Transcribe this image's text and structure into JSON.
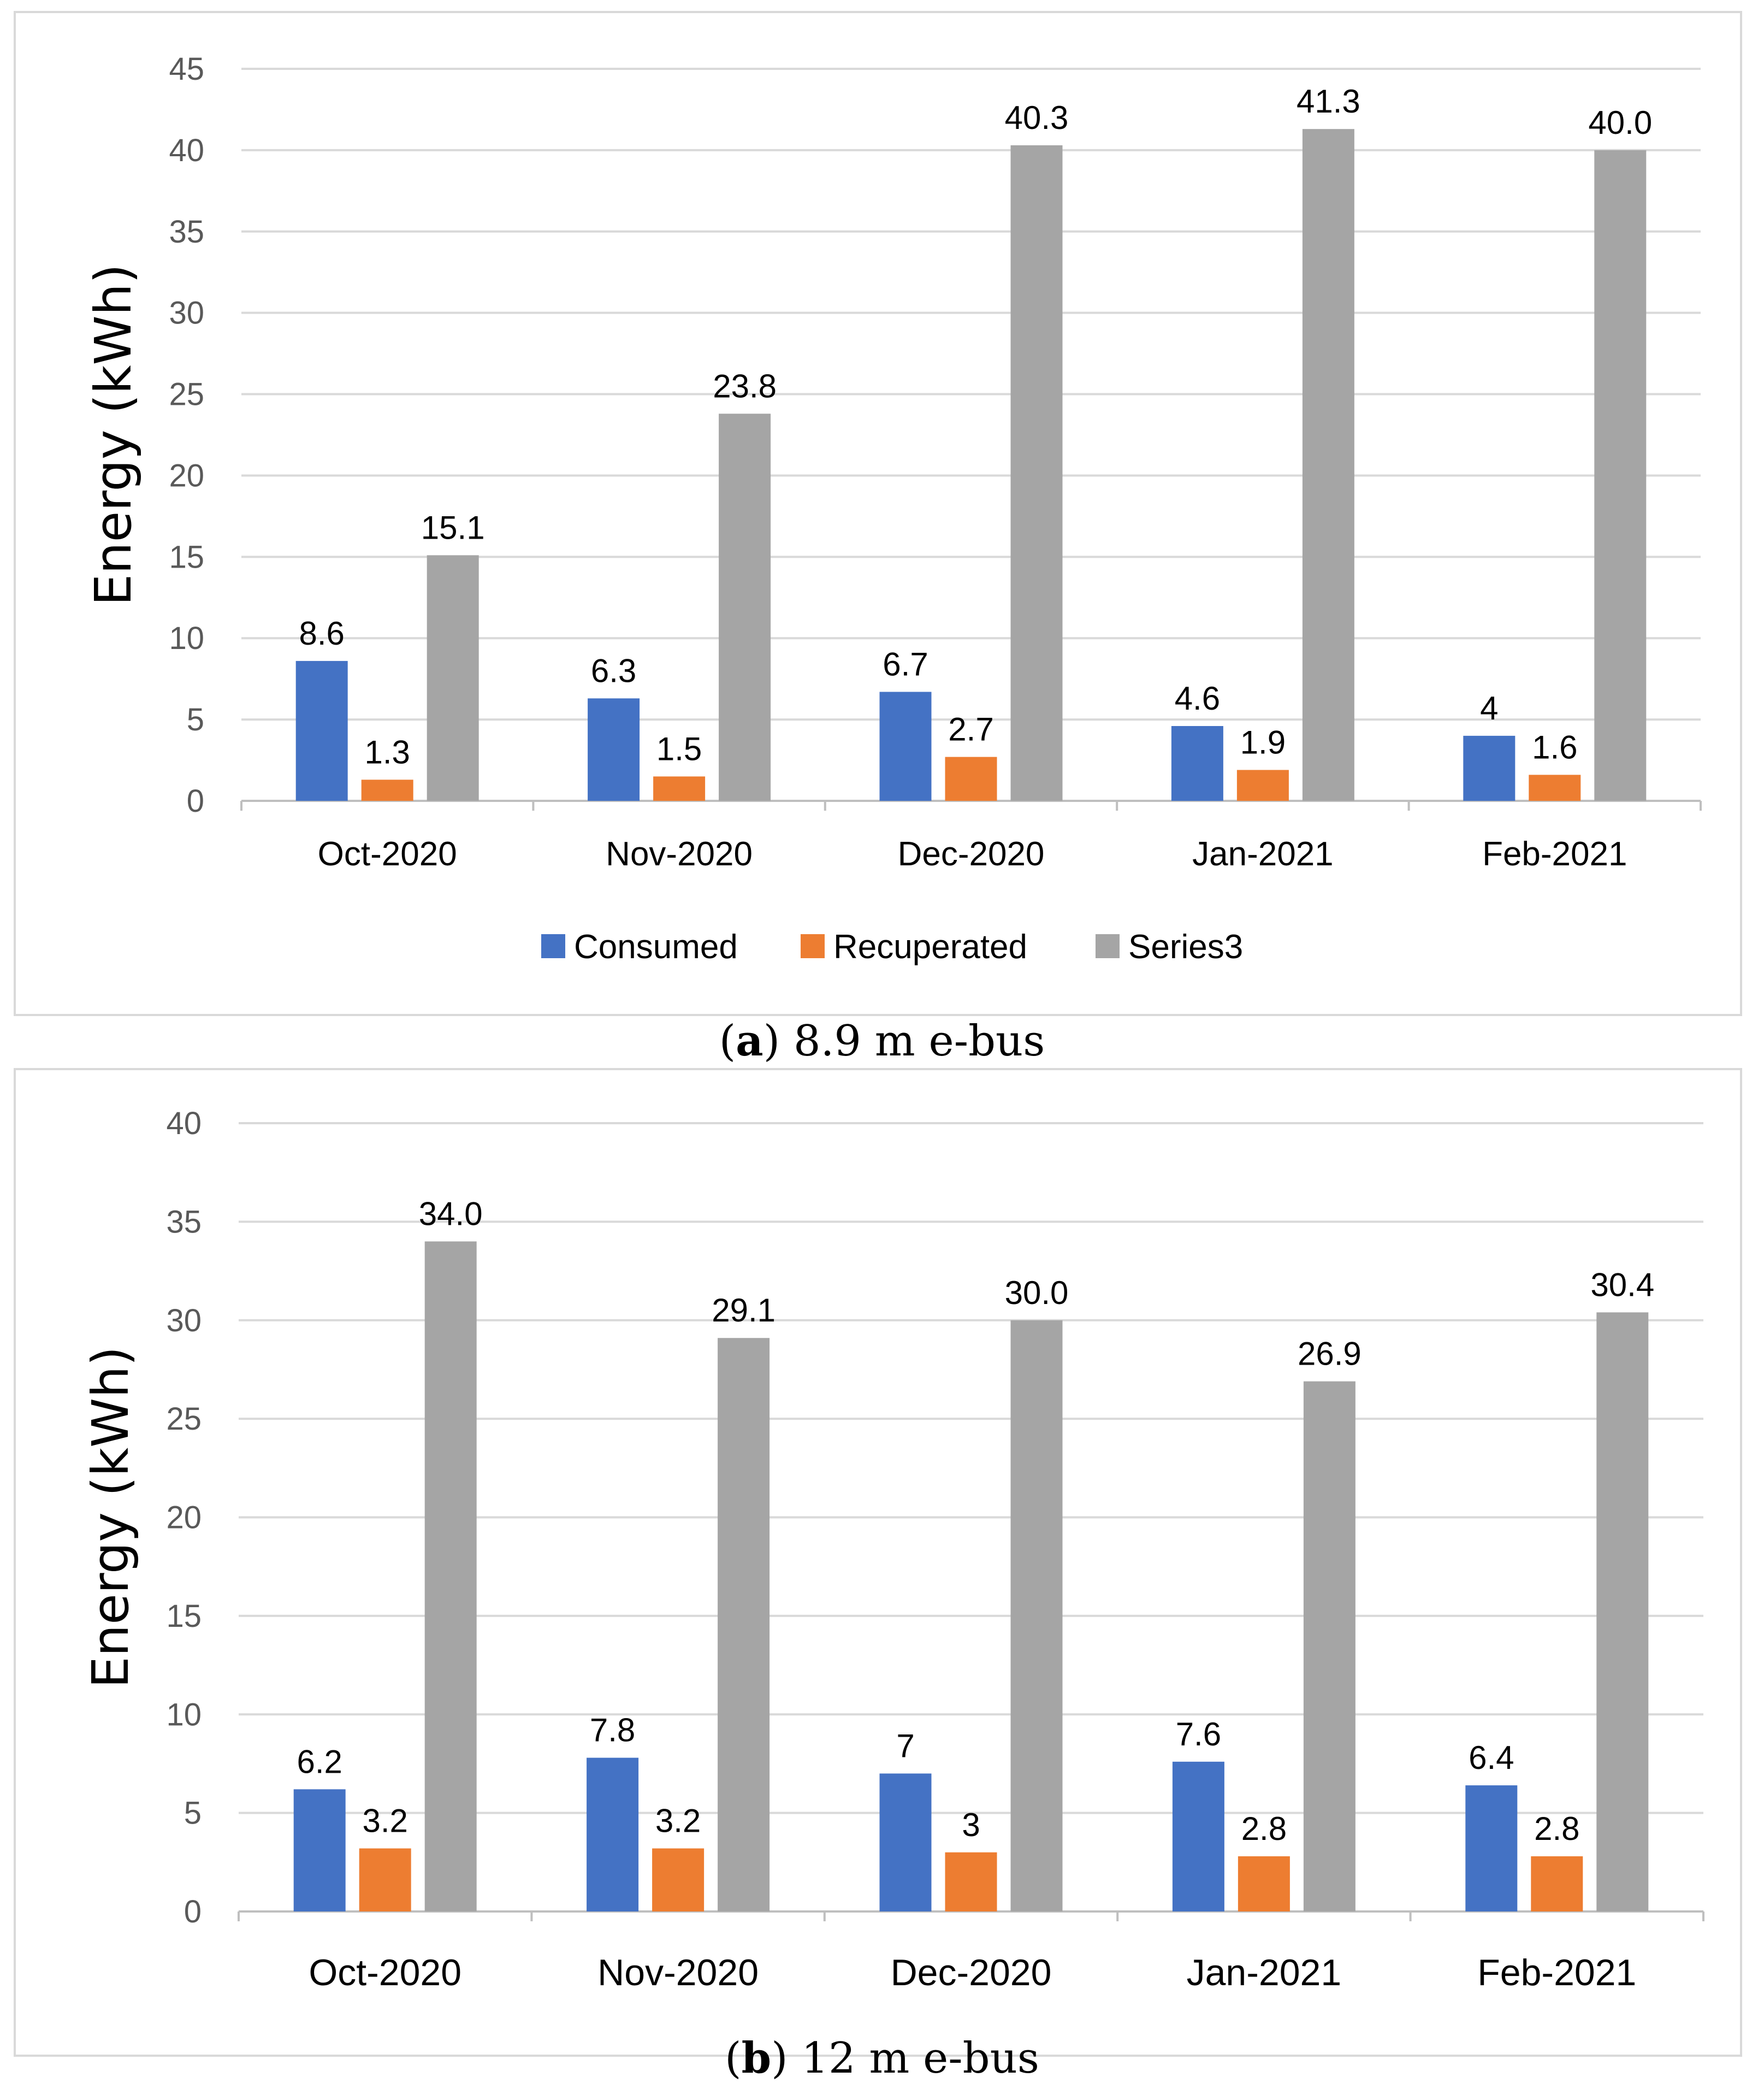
{
  "chart_data": [
    {
      "type": "bar",
      "categories": [
        "Oct-2020",
        "Nov-2020",
        "Dec-2020",
        "Jan-2021",
        "Feb-2021"
      ],
      "series": [
        {
          "name": "Consumed",
          "values": [
            8.6,
            6.3,
            6.7,
            4.6,
            4
          ],
          "labels": [
            "8.6",
            "6.3",
            "6.7",
            "4.6",
            "4"
          ]
        },
        {
          "name": "Recuperated",
          "values": [
            1.3,
            1.5,
            2.7,
            1.9,
            1.6
          ],
          "labels": [
            "1.3",
            "1.5",
            "2.7",
            "1.9",
            "1.6"
          ]
        },
        {
          "name": "Series3",
          "values": [
            15.1,
            23.8,
            40.3,
            41.3,
            40.0
          ],
          "labels": [
            "15.1",
            "23.8",
            "40.3",
            "41.3",
            "40.0"
          ]
        }
      ],
      "xlabel": "",
      "ylabel": "Energy (kWh)",
      "ylim": [
        0,
        45
      ],
      "yticks": [
        0,
        5,
        10,
        15,
        20,
        25,
        30,
        35,
        40,
        45
      ],
      "grid": true,
      "legend": "bottom",
      "caption_bold": "a",
      "caption_rest": " 8.9 m e-bus"
    },
    {
      "type": "bar",
      "categories": [
        "Oct-2020",
        "Nov-2020",
        "Dec-2020",
        "Jan-2021",
        "Feb-2021"
      ],
      "series": [
        {
          "name": "Consumed",
          "values": [
            6.2,
            7.8,
            7,
            7.6,
            6.4
          ],
          "labels": [
            "6.2",
            "7.8",
            "7",
            "7.6",
            "6.4"
          ]
        },
        {
          "name": "Recuperated",
          "values": [
            3.2,
            3.2,
            3,
            2.8,
            2.8
          ],
          "labels": [
            "3.2",
            "3.2",
            "3",
            "2.8",
            "2.8"
          ]
        },
        {
          "name": "Series3",
          "values": [
            34.0,
            29.1,
            30.0,
            26.9,
            30.4
          ],
          "labels": [
            "34.0",
            "29.1",
            "30.0",
            "26.9",
            "30.4"
          ]
        }
      ],
      "xlabel": "",
      "ylabel": "Energy (kWh)",
      "ylim": [
        0,
        40
      ],
      "yticks": [
        0,
        5,
        10,
        15,
        20,
        25,
        30,
        35,
        40
      ],
      "grid": true,
      "legend": "none",
      "caption_bold": "b",
      "caption_rest": " 12 m e-bus"
    }
  ],
  "colors": {
    "Consumed": "#4472c4",
    "Recuperated": "#ed7d31",
    "Series3": "#a5a5a5",
    "grid": "#d9d9d9",
    "axis": "#bfbfbf"
  }
}
